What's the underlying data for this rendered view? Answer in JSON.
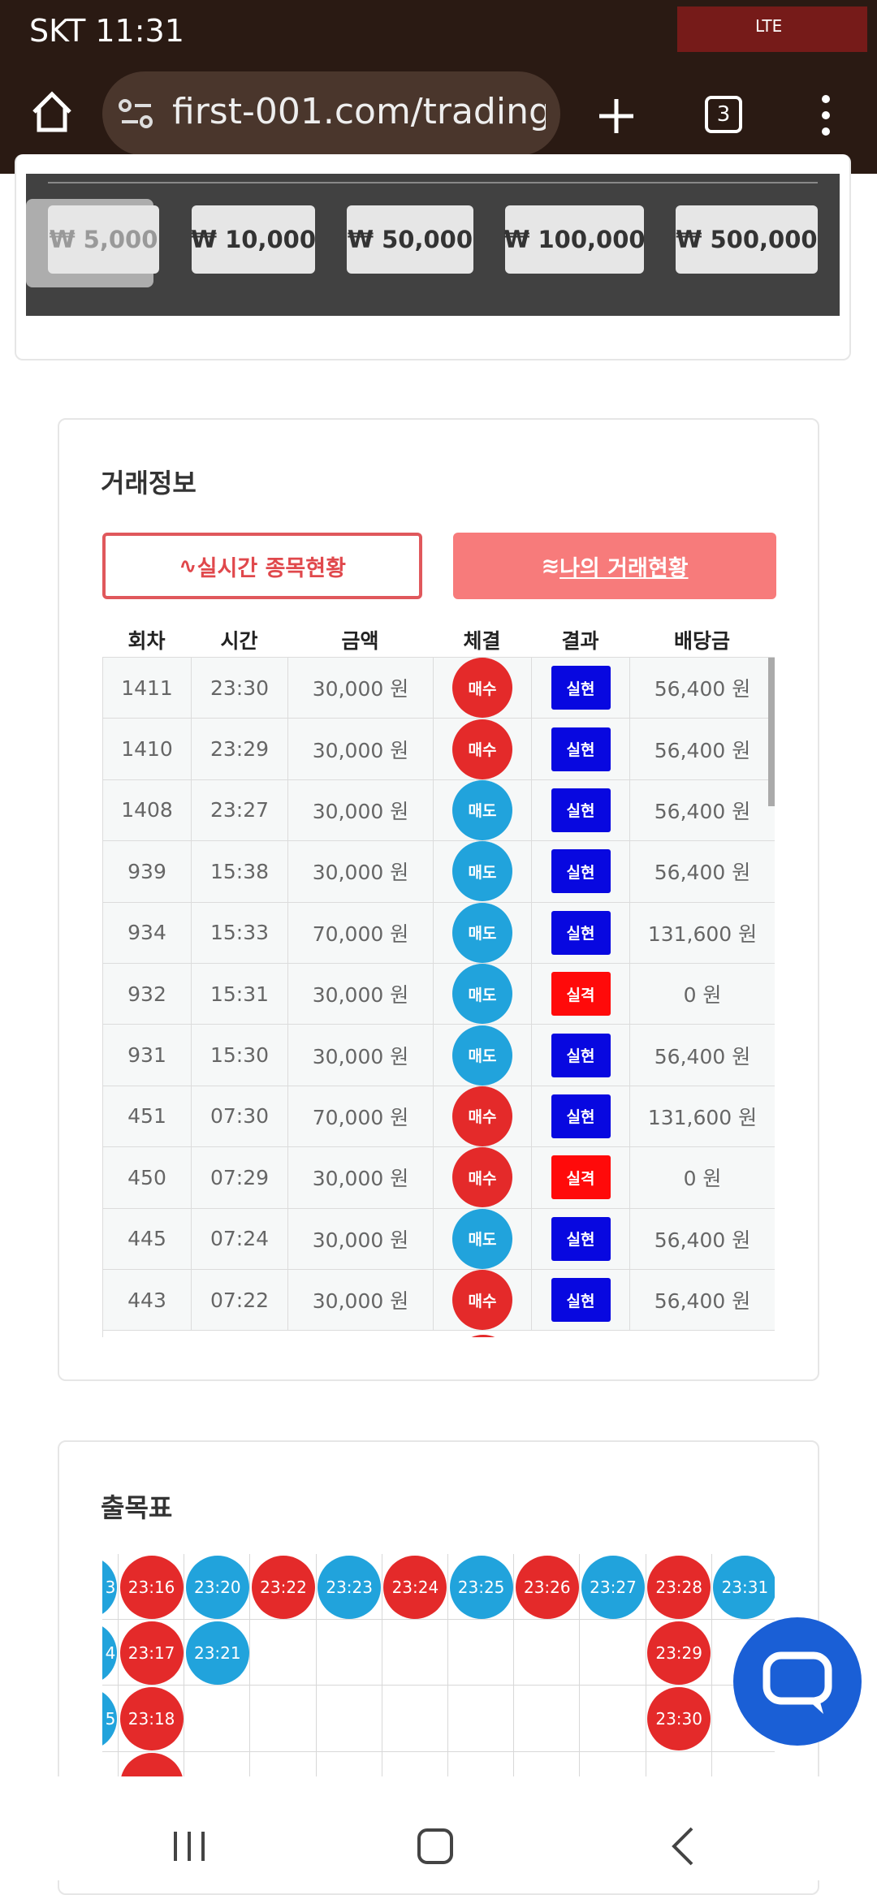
{
  "status_bar": {
    "carrier_time": "SKT 11:31",
    "network": "LTE"
  },
  "browser": {
    "url": "first-001.com/trading/",
    "tab_count": "3"
  },
  "amount_buttons": [
    "₩ 5,000",
    "₩ 10,000",
    "₩ 50,000",
    "₩ 100,000",
    "₩ 500,000"
  ],
  "trade_info": {
    "title": "거래정보",
    "tabs": [
      "실시간 종목현황",
      "나의 거래현황"
    ],
    "columns": [
      "회차",
      "시간",
      "금액",
      "체결",
      "결과",
      "배당금"
    ],
    "rows": [
      [
        "1411",
        "23:30",
        "30,000 원",
        "매수",
        "실현",
        "56,400 원"
      ],
      [
        "1410",
        "23:29",
        "30,000 원",
        "매수",
        "실현",
        "56,400 원"
      ],
      [
        "1408",
        "23:27",
        "30,000 원",
        "매도",
        "실현",
        "56,400 원"
      ],
      [
        "939",
        "15:38",
        "30,000 원",
        "매도",
        "실현",
        "56,400 원"
      ],
      [
        "934",
        "15:33",
        "70,000 원",
        "매도",
        "실현",
        "131,600 원"
      ],
      [
        "932",
        "15:31",
        "30,000 원",
        "매도",
        "실격",
        "0 원"
      ],
      [
        "931",
        "15:30",
        "30,000 원",
        "매도",
        "실현",
        "56,400 원"
      ],
      [
        "451",
        "07:30",
        "70,000 원",
        "매수",
        "실현",
        "131,600 원"
      ],
      [
        "450",
        "07:29",
        "30,000 원",
        "매수",
        "실격",
        "0 원"
      ],
      [
        "445",
        "07:24",
        "30,000 원",
        "매도",
        "실현",
        "56,400 원"
      ],
      [
        "443",
        "07:22",
        "30,000 원",
        "매수",
        "실현",
        "56,400 원"
      ]
    ]
  },
  "result_board": {
    "title": "출목표",
    "columns": [
      [
        {
          "label": "3",
          "color": "#21a3dc"
        },
        {
          "label": "4",
          "color": "#21a3dc"
        },
        {
          "label": "5",
          "color": "#21a3dc"
        }
      ],
      [
        {
          "label": "23:16",
          "color": "#e42a2a"
        },
        {
          "label": "23:17",
          "color": "#e42a2a"
        },
        {
          "label": "23:18",
          "color": "#e42a2a"
        },
        {
          "color": "#e42a2a"
        }
      ],
      [
        {
          "label": "23:20",
          "color": "#21a3dc"
        },
        {
          "label": "23:21",
          "color": "#21a3dc"
        }
      ],
      [
        {
          "label": "23:22",
          "color": "#e42a2a"
        }
      ],
      [
        {
          "label": "23:23",
          "color": "#21a3dc"
        }
      ],
      [
        {
          "label": "23:24",
          "color": "#e42a2a"
        }
      ],
      [
        {
          "label": "23:25",
          "color": "#21a3dc"
        }
      ],
      [
        {
          "label": "23:26",
          "color": "#e42a2a"
        }
      ],
      [
        {
          "label": "23:27",
          "color": "#21a3dc"
        }
      ],
      [
        {
          "label": "23:28",
          "color": "#e42a2a"
        },
        {
          "label": "23:29",
          "color": "#e42a2a"
        },
        {
          "label": "23:30",
          "color": "#e42a2a"
        }
      ],
      [
        {
          "label": "23:31",
          "color": "#21a3dc"
        }
      ]
    ]
  }
}
